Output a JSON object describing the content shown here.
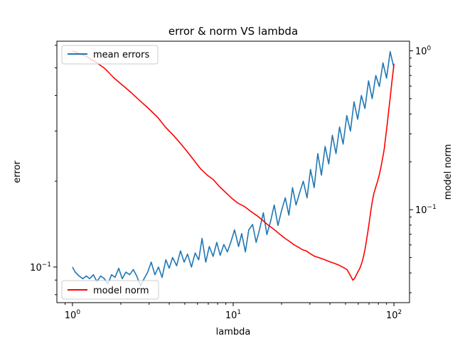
{
  "chart_data": {
    "type": "line",
    "title": "error & norm VS lambda",
    "xlabel": "lambda",
    "ylabel": "error",
    "y2label": "model norm",
    "xscale": "log",
    "yscale": "log",
    "y2scale": "log",
    "xlim": [
      0.8,
      125
    ],
    "ylim": [
      0.075,
      0.62
    ],
    "y2lim": [
      0.026,
      1.15
    ],
    "x_ticks": [
      {
        "value": 1,
        "base": "10",
        "exp": "0"
      },
      {
        "value": 10,
        "base": "10",
        "exp": "1"
      },
      {
        "value": 100,
        "base": "10",
        "exp": "2"
      }
    ],
    "y_ticks": [
      {
        "value": 0.1,
        "base": "10",
        "exp": "−1"
      }
    ],
    "y2_ticks": [
      {
        "value": 0.1,
        "base": "10",
        "exp": "−1"
      },
      {
        "value": 1,
        "base": "10",
        "exp": "0"
      }
    ],
    "grid": false,
    "colors": {
      "mean_errors": "#1f77b4",
      "model_norm": "#ff0000"
    },
    "series": [
      {
        "name": "mean errors",
        "axis": "left",
        "points": [
          [
            1.0,
            0.1
          ],
          [
            1.04,
            0.096
          ],
          [
            1.1,
            0.093
          ],
          [
            1.16,
            0.091
          ],
          [
            1.22,
            0.093
          ],
          [
            1.28,
            0.091
          ],
          [
            1.35,
            0.094
          ],
          [
            1.42,
            0.089
          ],
          [
            1.5,
            0.093
          ],
          [
            1.58,
            0.091
          ],
          [
            1.66,
            0.087
          ],
          [
            1.75,
            0.094
          ],
          [
            1.84,
            0.092
          ],
          [
            1.94,
            0.099
          ],
          [
            2.04,
            0.091
          ],
          [
            2.15,
            0.096
          ],
          [
            2.27,
            0.094
          ],
          [
            2.39,
            0.098
          ],
          [
            2.51,
            0.093
          ],
          [
            2.65,
            0.086
          ],
          [
            2.79,
            0.091
          ],
          [
            2.94,
            0.096
          ],
          [
            3.09,
            0.104
          ],
          [
            3.26,
            0.094
          ],
          [
            3.43,
            0.1
          ],
          [
            3.61,
            0.092
          ],
          [
            3.81,
            0.106
          ],
          [
            4.0,
            0.099
          ],
          [
            4.2,
            0.108
          ],
          [
            4.45,
            0.101
          ],
          [
            4.7,
            0.114
          ],
          [
            4.95,
            0.104
          ],
          [
            5.2,
            0.111
          ],
          [
            5.5,
            0.1
          ],
          [
            5.8,
            0.112
          ],
          [
            6.1,
            0.106
          ],
          [
            6.4,
            0.126
          ],
          [
            6.75,
            0.104
          ],
          [
            7.1,
            0.118
          ],
          [
            7.5,
            0.109
          ],
          [
            7.9,
            0.122
          ],
          [
            8.3,
            0.11
          ],
          [
            8.75,
            0.12
          ],
          [
            9.2,
            0.113
          ],
          [
            9.7,
            0.123
          ],
          [
            10.2,
            0.135
          ],
          [
            10.8,
            0.118
          ],
          [
            11.3,
            0.131
          ],
          [
            11.9,
            0.113
          ],
          [
            12.5,
            0.135
          ],
          [
            13.2,
            0.141
          ],
          [
            13.9,
            0.122
          ],
          [
            14.6,
            0.136
          ],
          [
            15.4,
            0.155
          ],
          [
            16.2,
            0.13
          ],
          [
            17.1,
            0.145
          ],
          [
            18.0,
            0.165
          ],
          [
            19.0,
            0.14
          ],
          [
            20.0,
            0.158
          ],
          [
            21.1,
            0.175
          ],
          [
            22.2,
            0.152
          ],
          [
            23.4,
            0.19
          ],
          [
            24.6,
            0.165
          ],
          [
            25.9,
            0.182
          ],
          [
            27.3,
            0.2
          ],
          [
            28.8,
            0.175
          ],
          [
            30.3,
            0.22
          ],
          [
            31.9,
            0.19
          ],
          [
            33.6,
            0.25
          ],
          [
            35.4,
            0.21
          ],
          [
            37.3,
            0.265
          ],
          [
            39.3,
            0.23
          ],
          [
            41.4,
            0.29
          ],
          [
            43.6,
            0.25
          ],
          [
            45.9,
            0.31
          ],
          [
            48.3,
            0.27
          ],
          [
            50.9,
            0.34
          ],
          [
            53.6,
            0.3
          ],
          [
            56.5,
            0.38
          ],
          [
            59.5,
            0.33
          ],
          [
            62.7,
            0.4
          ],
          [
            66.0,
            0.36
          ],
          [
            69.5,
            0.45
          ],
          [
            73.2,
            0.39
          ],
          [
            77.1,
            0.47
          ],
          [
            81.2,
            0.43
          ],
          [
            85.5,
            0.52
          ],
          [
            90.0,
            0.46
          ],
          [
            94.8,
            0.57
          ],
          [
            100.0,
            0.5
          ]
        ]
      },
      {
        "name": "model norm",
        "axis": "right",
        "points": [
          [
            1.0,
            1.0
          ],
          [
            1.2,
            0.93
          ],
          [
            1.4,
            0.85
          ],
          [
            1.6,
            0.77
          ],
          [
            1.8,
            0.68
          ],
          [
            2.0,
            0.62
          ],
          [
            2.3,
            0.55
          ],
          [
            2.6,
            0.49
          ],
          [
            3.0,
            0.43
          ],
          [
            3.4,
            0.38
          ],
          [
            3.8,
            0.33
          ],
          [
            4.3,
            0.29
          ],
          [
            4.8,
            0.255
          ],
          [
            5.3,
            0.225
          ],
          [
            5.8,
            0.2
          ],
          [
            6.3,
            0.18
          ],
          [
            6.9,
            0.165
          ],
          [
            7.5,
            0.155
          ],
          [
            8.2,
            0.14
          ],
          [
            9.0,
            0.128
          ],
          [
            9.8,
            0.118
          ],
          [
            10.7,
            0.11
          ],
          [
            11.7,
            0.105
          ],
          [
            12.8,
            0.098
          ],
          [
            14.0,
            0.092
          ],
          [
            15.2,
            0.086
          ],
          [
            16.5,
            0.08
          ],
          [
            18.0,
            0.075
          ],
          [
            19.5,
            0.07
          ],
          [
            21.0,
            0.066
          ],
          [
            22.5,
            0.063
          ],
          [
            24.0,
            0.06
          ],
          [
            25.5,
            0.058
          ],
          [
            27.0,
            0.056
          ],
          [
            28.5,
            0.055
          ],
          [
            30.0,
            0.053
          ],
          [
            32.0,
            0.051
          ],
          [
            34.0,
            0.05
          ],
          [
            36.0,
            0.049
          ],
          [
            38.0,
            0.048
          ],
          [
            40.0,
            0.047
          ],
          [
            42.5,
            0.046
          ],
          [
            45.0,
            0.045
          ],
          [
            47.0,
            0.044
          ],
          [
            49.0,
            0.043
          ],
          [
            51.0,
            0.042
          ],
          [
            52.5,
            0.04
          ],
          [
            54.0,
            0.038
          ],
          [
            55.5,
            0.036
          ],
          [
            57.0,
            0.037
          ],
          [
            58.5,
            0.039
          ],
          [
            60.0,
            0.041
          ],
          [
            61.5,
            0.043
          ],
          [
            63.0,
            0.046
          ],
          [
            64.5,
            0.05
          ],
          [
            66.0,
            0.056
          ],
          [
            67.5,
            0.064
          ],
          [
            69.0,
            0.074
          ],
          [
            70.5,
            0.086
          ],
          [
            72.0,
            0.1
          ],
          [
            73.5,
            0.114
          ],
          [
            75.0,
            0.126
          ],
          [
            77.0,
            0.138
          ],
          [
            79.0,
            0.15
          ],
          [
            81.0,
            0.165
          ],
          [
            83.0,
            0.185
          ],
          [
            85.0,
            0.21
          ],
          [
            87.0,
            0.24
          ],
          [
            89.0,
            0.29
          ],
          [
            91.0,
            0.35
          ],
          [
            93.0,
            0.43
          ],
          [
            95.0,
            0.52
          ],
          [
            97.0,
            0.63
          ],
          [
            99.0,
            0.75
          ],
          [
            100.0,
            0.83
          ]
        ]
      }
    ],
    "legends": [
      {
        "position": "upper left",
        "entries": [
          "mean errors"
        ]
      },
      {
        "position": "lower left",
        "entries": [
          "model norm"
        ]
      }
    ]
  }
}
